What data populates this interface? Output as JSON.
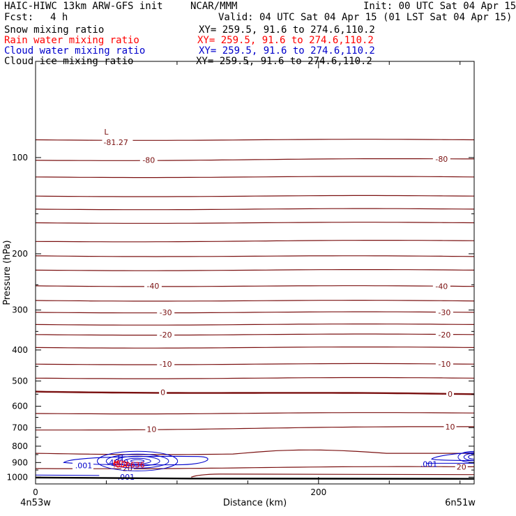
{
  "header": {
    "title_left": "HAIC-HIWC 13km ARW-GFS init",
    "title_center": "NCAR/MMM",
    "init": "Init: 00 UTC Sat 04 Apr 15",
    "fcst_label": "Fcst:",
    "fcst_value": "4 h",
    "valid": "Valid: 04 UTC Sat 04 Apr 15 (01 LST Sat 04 Apr 15)"
  },
  "fields": [
    {
      "name": "Snow mixing ratio",
      "xy": "XY= 259.5, 91.6 to 274.6,110.2",
      "color": "#000000"
    },
    {
      "name": "Rain water mixing ratio",
      "xy": "XY= 259.5, 91.6 to 274.6,110.2",
      "color": "#ff0000"
    },
    {
      "name": "Cloud water mixing ratio",
      "xy": "XY= 259.5, 91.6 to 274.6,110.2",
      "color": "#0000cc"
    },
    {
      "name": "Cloud ice mixing ratio",
      "xy": "XY= 259.5, 91.6 to 274.6,110.2",
      "color": "#000000"
    }
  ],
  "chart_data": {
    "type": "line",
    "xlabel": "Distance (km)",
    "ylabel": "Pressure (hPa)",
    "x_range": [
      0,
      310
    ],
    "y_range": [
      1050,
      50
    ],
    "y_scale": "log",
    "x_ticks": [
      0,
      200
    ],
    "x_minor": [
      50,
      100,
      150,
      250,
      300
    ],
    "y_ticks": [
      100,
      200,
      300,
      400,
      500,
      600,
      700,
      800,
      900,
      1000
    ],
    "x_left_label": "4n53w",
    "x_right_label": "6n51w",
    "isotherm_color": "#7a1010",
    "isotherms": [
      {
        "p_left": 88,
        "p_right": 88
      },
      {
        "p_left": 102,
        "p_right": 101,
        "label": "-80",
        "lx": [
          80,
          287
        ]
      },
      {
        "p_left": 115,
        "p_right": 115
      },
      {
        "p_left": 132,
        "p_right": 132
      },
      {
        "p_left": 145,
        "p_right": 145
      },
      {
        "p_left": 160,
        "p_right": 160
      },
      {
        "p_left": 183,
        "p_right": 182
      },
      {
        "p_left": 203,
        "p_right": 204
      },
      {
        "p_left": 225,
        "p_right": 225
      },
      {
        "p_left": 252,
        "p_right": 253,
        "label": "-40",
        "lx": [
          83,
          287
        ]
      },
      {
        "p_left": 280,
        "p_right": 281
      },
      {
        "p_left": 305,
        "p_right": 305,
        "label": "-30",
        "lx": [
          92,
          289
        ]
      },
      {
        "p_left": 333,
        "p_right": 333
      },
      {
        "p_left": 358,
        "p_right": 358,
        "label": "-20",
        "lx": [
          92,
          289
        ]
      },
      {
        "p_left": 393,
        "p_right": 393
      },
      {
        "p_left": 443,
        "p_right": 443,
        "label": "-10",
        "lx": [
          92,
          289
        ]
      },
      {
        "p_left": 490,
        "p_right": 490
      },
      {
        "p_left": 540,
        "p_right": 550,
        "label": "0",
        "lx": [
          90,
          293
        ],
        "bold": true
      },
      {
        "p_left": 632,
        "p_right": 630
      },
      {
        "p_left": 712,
        "p_right": 695,
        "label": "10",
        "lx": [
          82,
          293
        ]
      },
      {
        "p_left": 940,
        "p_right": 928,
        "label": "20",
        "lx": [
          65,
          301
        ]
      }
    ],
    "min_label": {
      "text": "L",
      "value": "-81.27",
      "x": 50,
      "p": 83
    },
    "cloud_water": {
      "color": "#0000cc",
      "label_min": ".001",
      "center_label": "H",
      "center_value": ".4609",
      "bottom_label": ".001",
      "right_label": ".001"
    },
    "rain_water": {
      "color": "#ff0000",
      "center_label": "H",
      "center_value": ".000636"
    }
  }
}
